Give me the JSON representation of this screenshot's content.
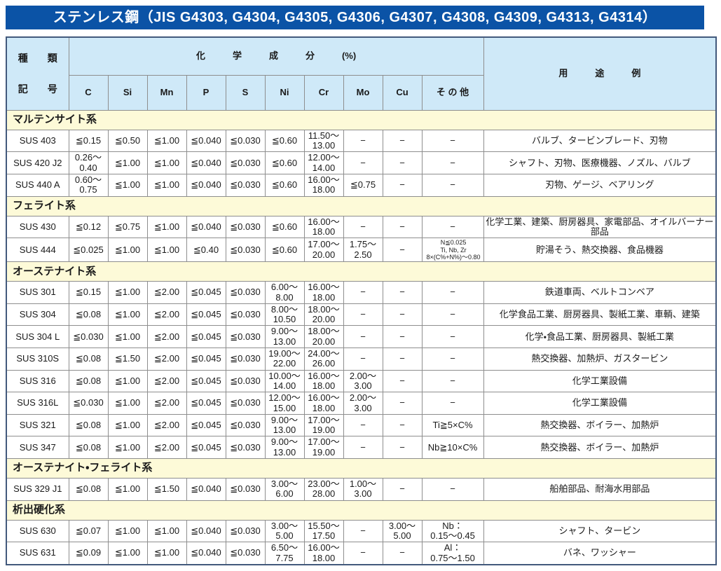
{
  "title": "ステンレス鋼（JIS G4303, G4304, G4305, G4306, G4307, G4308, G4309, G4313, G4314）",
  "colors": {
    "title_bar_bg": "#0b53a6",
    "title_text": "#ffffff",
    "header_bg": "#cfe9f8",
    "section_bg": "#fdfad8",
    "grid_line": "#8e8e8e",
    "outer_border": "#42597c"
  },
  "table": {
    "header": {
      "kind_label": "種　　類",
      "code_label": "記　　号",
      "chem_label": "化　　　学　　　成　　　分　　　(%)",
      "use_label": "用　　　途　　　例",
      "elements": [
        "C",
        "Si",
        "Mn",
        "P",
        "S",
        "Ni",
        "Cr",
        "Mo",
        "Cu",
        "そ の 他"
      ]
    },
    "sections": [
      {
        "name": "マルテンサイト系",
        "rows": [
          {
            "code": "SUS 403",
            "values": [
              "≦0.15",
              "≦0.50",
              "≦1.00",
              "≦0.040",
              "≦0.030",
              "≦0.60",
              "11.50～\n13.00",
              "−",
              "−",
              "−"
            ],
            "use": "バルブ、タービンブレード、刃物"
          },
          {
            "code": "SUS 420 J2",
            "values": [
              "0.26～\n0.40",
              "≦1.00",
              "≦1.00",
              "≦0.040",
              "≦0.030",
              "≦0.60",
              "12.00～\n14.00",
              "−",
              "−",
              "−"
            ],
            "use": "シャフト、刃物、医療機器、ノズル、バルブ"
          },
          {
            "code": "SUS 440 A",
            "values": [
              "0.60～\n0.75",
              "≦1.00",
              "≦1.00",
              "≦0.040",
              "≦0.030",
              "≦0.60",
              "16.00～\n18.00",
              "≦0.75",
              "−",
              "−"
            ],
            "use": "刃物、ゲージ、ベアリング"
          }
        ]
      },
      {
        "name": "フェライト系",
        "rows": [
          {
            "code": "SUS 430",
            "values": [
              "≦0.12",
              "≦0.75",
              "≦1.00",
              "≦0.040",
              "≦0.030",
              "≦0.60",
              "16.00～\n18.00",
              "−",
              "−",
              "−"
            ],
            "use": "化学工業、建築、厨房器具、家電部品、オイルバーナー部品"
          },
          {
            "code": "SUS 444",
            "values": [
              "≦0.025",
              "≦1.00",
              "≦1.00",
              "≦0.40",
              "≦0.030",
              "≦0.60",
              "17.00～\n20.00",
              "1.75～\n2.50",
              "−",
              "N≦0.025\nTi, Nb, Zr\n8×(C%+N%)～0.80"
            ],
            "use": "貯湯そう、熱交換器、食品機器"
          }
        ]
      },
      {
        "name": "オーステナイト系",
        "rows": [
          {
            "code": "SUS 301",
            "values": [
              "≦0.15",
              "≦1.00",
              "≦2.00",
              "≦0.045",
              "≦0.030",
              "6.00～\n8.00",
              "16.00～\n18.00",
              "−",
              "−",
              "−"
            ],
            "use": "鉄道車両、ベルトコンベア"
          },
          {
            "code": "SUS 304",
            "values": [
              "≦0.08",
              "≦1.00",
              "≦2.00",
              "≦0.045",
              "≦0.030",
              "8.00～\n10.50",
              "18.00～\n20.00",
              "−",
              "−",
              "−"
            ],
            "use": "化学食品工業、厨房器具、製紙工業、車輌、建築"
          },
          {
            "code": "SUS 304 L",
            "values": [
              "≦0.030",
              "≦1.00",
              "≦2.00",
              "≦0.045",
              "≦0.030",
              "9.00～\n13.00",
              "18.00～\n20.00",
              "−",
              "−",
              "−"
            ],
            "use": "化学・食品工業、厨房器具、製紙工業"
          },
          {
            "code": "SUS 310S",
            "values": [
              "≦0.08",
              "≦1.50",
              "≦2.00",
              "≦0.045",
              "≦0.030",
              "19.00～\n22.00",
              "24.00～\n26.00",
              "−",
              "−",
              "−"
            ],
            "use": "熱交換器、加熱炉、ガスタービン"
          },
          {
            "code": "SUS 316",
            "values": [
              "≦0.08",
              "≦1.00",
              "≦2.00",
              "≦0.045",
              "≦0.030",
              "10.00～\n14.00",
              "16.00～\n18.00",
              "2.00～\n3.00",
              "−",
              "−"
            ],
            "use": "化学工業設備"
          },
          {
            "code": "SUS 316L",
            "values": [
              "≦0.030",
              "≦1.00",
              "≦2.00",
              "≦0.045",
              "≦0.030",
              "12.00～\n15.00",
              "16.00～\n18.00",
              "2.00～\n3.00",
              "−",
              "−"
            ],
            "use": "化学工業設備"
          },
          {
            "code": "SUS 321",
            "values": [
              "≦0.08",
              "≦1.00",
              "≦2.00",
              "≦0.045",
              "≦0.030",
              "9.00～\n13.00",
              "17.00～\n19.00",
              "−",
              "−",
              "Ti≧5×C%"
            ],
            "use": "熱交換器、ボイラー、加熱炉"
          },
          {
            "code": "SUS 347",
            "values": [
              "≦0.08",
              "≦1.00",
              "≦2.00",
              "≦0.045",
              "≦0.030",
              "9.00～\n13.00",
              "17.00～\n19.00",
              "−",
              "−",
              "Nb≧10×C%"
            ],
            "use": "熱交換器、ボイラー、加熱炉"
          }
        ]
      },
      {
        "name": "オーステナイト・フェライト系",
        "rows": [
          {
            "code": "SUS 329 J1",
            "values": [
              "≦0.08",
              "≦1.00",
              "≦1.50",
              "≦0.040",
              "≦0.030",
              "3.00～\n6.00",
              "23.00～\n28.00",
              "1.00～\n3.00",
              "−",
              "−"
            ],
            "use": "船舶部品、耐海水用部品"
          }
        ]
      },
      {
        "name": "析出硬化系",
        "rows": [
          {
            "code": "SUS 630",
            "values": [
              "≦0.07",
              "≦1.00",
              "≦1.00",
              "≦0.040",
              "≦0.030",
              "3.00～\n5.00",
              "15.50～\n17.50",
              "−",
              "3.00～\n5.00",
              "Nb：\n0.15～0.45"
            ],
            "use": "シャフト、タービン"
          },
          {
            "code": "SUS 631",
            "values": [
              "≦0.09",
              "≦1.00",
              "≦1.00",
              "≦0.040",
              "≦0.030",
              "6.50～\n7.75",
              "16.00～\n18.00",
              "−",
              "−",
              "Al：\n0.75～1.50"
            ],
            "use": "バネ、ワッシャー"
          }
        ]
      }
    ]
  }
}
